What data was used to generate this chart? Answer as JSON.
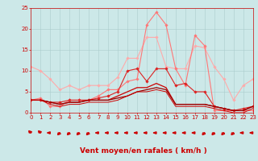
{
  "x": [
    0,
    1,
    2,
    3,
    4,
    5,
    6,
    7,
    8,
    9,
    10,
    11,
    12,
    13,
    14,
    15,
    16,
    17,
    18,
    19,
    20,
    21,
    22,
    23
  ],
  "series": [
    {
      "color": "#ffaaaa",
      "lw": 0.8,
      "marker": "D",
      "markersize": 1.8,
      "values": [
        11,
        10,
        8,
        5.5,
        6.5,
        5.5,
        6.5,
        6.5,
        6.5,
        8.5,
        13,
        13,
        18,
        18,
        11,
        10.5,
        10.5,
        16,
        15.5,
        11,
        8,
        3,
        6.5,
        8
      ]
    },
    {
      "color": "#ff7777",
      "lw": 0.8,
      "marker": "D",
      "markersize": 1.8,
      "values": [
        3,
        3.5,
        1.5,
        1.5,
        3,
        3,
        3,
        4,
        5.5,
        5.5,
        7.5,
        8,
        21,
        24,
        21,
        10.5,
        6.5,
        18.5,
        16,
        0.5,
        0.5,
        0.5,
        0.5,
        0.5
      ]
    },
    {
      "color": "#dd2222",
      "lw": 0.8,
      "marker": "D",
      "markersize": 1.8,
      "values": [
        3,
        3,
        2.5,
        2.5,
        3,
        3,
        3,
        3.5,
        4,
        5,
        10,
        10.5,
        7.5,
        10.5,
        10.5,
        6.5,
        7,
        5,
        5,
        1.5,
        1,
        0.5,
        1,
        1.5
      ]
    },
    {
      "color": "#cc0000",
      "lw": 0.9,
      "marker": "None",
      "markersize": 0,
      "values": [
        3,
        3,
        2.5,
        2,
        2.5,
        2.5,
        3,
        3,
        3,
        4,
        5,
        6,
        6,
        7,
        6,
        2,
        2,
        2,
        2,
        1.5,
        1,
        0.5,
        0.5,
        1.5
      ]
    },
    {
      "color": "#990000",
      "lw": 0.9,
      "marker": "None",
      "markersize": 0,
      "values": [
        3,
        3,
        2.5,
        2,
        2.5,
        2.5,
        3,
        3,
        3,
        3.5,
        4,
        5,
        5.5,
        6,
        5.5,
        2,
        2,
        2,
        2,
        1.5,
        1,
        0.5,
        0.5,
        1.5
      ]
    },
    {
      "color": "#cc0000",
      "lw": 0.7,
      "marker": "None",
      "markersize": 0,
      "values": [
        3,
        3,
        2,
        1.5,
        2,
        2,
        2.5,
        2.5,
        2.5,
        3,
        4,
        5,
        5,
        5.5,
        5,
        1.5,
        1.5,
        1.5,
        1.5,
        1,
        0.5,
        0,
        0,
        1
      ]
    }
  ],
  "xlabel": "Vent moyen/en rafales ( km/h )",
  "xlim": [
    0,
    23
  ],
  "ylim": [
    0,
    25
  ],
  "yticks": [
    0,
    5,
    10,
    15,
    20,
    25
  ],
  "xticks": [
    0,
    1,
    2,
    3,
    4,
    5,
    6,
    7,
    8,
    9,
    10,
    11,
    12,
    13,
    14,
    15,
    16,
    17,
    18,
    19,
    20,
    21,
    22,
    23
  ],
  "bg_color": "#cce8e8",
  "grid_color": "#aacccc",
  "arrow_color": "#cc0000",
  "tick_color": "#cc0000",
  "label_color": "#cc0000",
  "xlabel_fontsize": 6.5,
  "tick_fontsize": 5.0,
  "arrow_angles": [
    225,
    225,
    270,
    315,
    315,
    315,
    315,
    270,
    270,
    270,
    270,
    270,
    270,
    270,
    270,
    270,
    270,
    270,
    315,
    315,
    315,
    315,
    270,
    270
  ]
}
